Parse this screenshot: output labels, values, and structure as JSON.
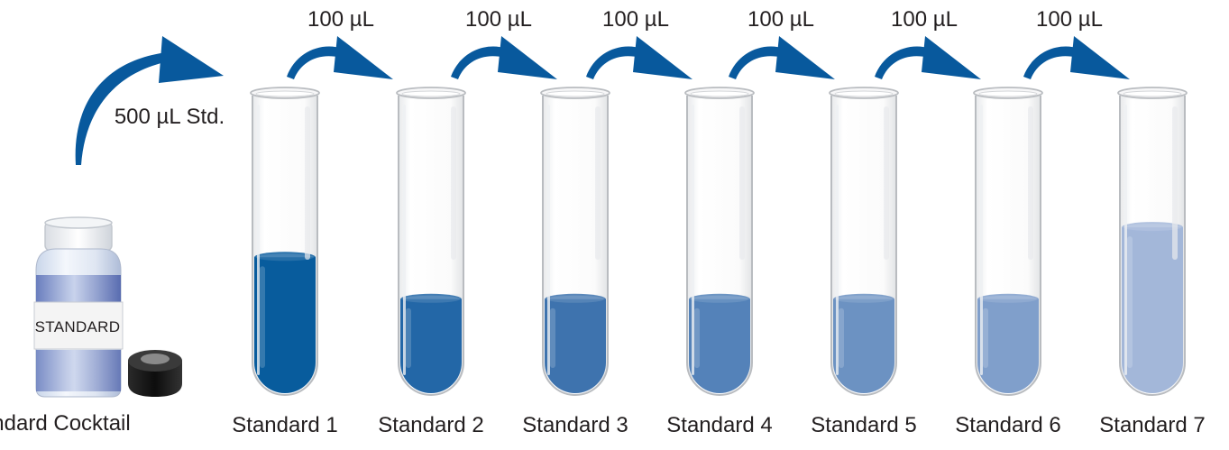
{
  "bottle": {
    "caption": "Standard Cocktail",
    "label_text": "STANDARD"
  },
  "initial_transfer": {
    "label": "500 µL Std."
  },
  "transfers": [
    {
      "label": "100 µL"
    },
    {
      "label": "100 µL"
    },
    {
      "label": "100 µL"
    },
    {
      "label": "100 µL"
    },
    {
      "label": "100 µL"
    },
    {
      "label": "100 µL"
    }
  ],
  "tubes": [
    {
      "label": "Standard 1",
      "fill_level": 0.46,
      "color": "#085c9d"
    },
    {
      "label": "Standard 2",
      "fill_level": 0.32,
      "color": "#2367a7"
    },
    {
      "label": "Standard 3",
      "fill_level": 0.32,
      "color": "#3e73ae"
    },
    {
      "label": "Standard 4",
      "fill_level": 0.32,
      "color": "#5482b9"
    },
    {
      "label": "Standard 5",
      "fill_level": 0.32,
      "color": "#6c92c2"
    },
    {
      "label": "Standard 6",
      "fill_level": 0.32,
      "color": "#809fcb"
    },
    {
      "label": "Standard 7",
      "fill_level": 0.56,
      "color": "#a3b7d9"
    }
  ],
  "colors": {
    "arrow": "#08599d",
    "text": "#231f20",
    "glass_edge": "#b9bcc0",
    "cap": "#1a1a1a"
  }
}
